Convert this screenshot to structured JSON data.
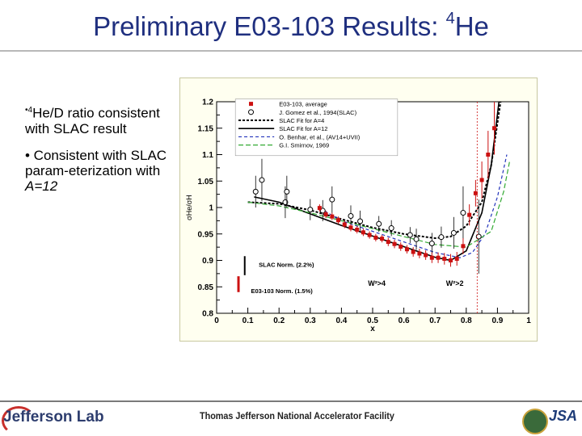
{
  "slide": {
    "title_main": "Preliminary E03-103 Results: ",
    "title_sup": "4",
    "title_tail": "He",
    "bullet1_prefix": "•",
    "bullet1_sup": "4",
    "bullet1_text": "He/D ratio consistent with SLAC result",
    "bullet2_text": "• Consistent with SLAC param-eterization with",
    "bullet2_italic": "A=12",
    "footer_text": "Thomas Jefferson National Accelerator Facility",
    "logo_left": "Jefferson Lab",
    "logo_right": "JSA"
  },
  "chart_data": {
    "type": "scatter",
    "xlabel": "x",
    "ylabel": "σHe/σH",
    "xlim": [
      0,
      1
    ],
    "ylim": [
      0.8,
      1.2
    ],
    "xticks": [
      "0",
      "0.1",
      "0.2",
      "0.3",
      "0.4",
      "0.5",
      "0.6",
      "0.7",
      "0.8",
      "0.9",
      "1"
    ],
    "yticks": [
      "0.8",
      "0.85",
      "0.9",
      "0.95",
      "1",
      "1.05",
      "1.1",
      "1.15",
      "1.2"
    ],
    "legend_position": "top",
    "legend": [
      "E03-103, average",
      "J. Gomez et al., 1994(SLAC)",
      "SLAC Fit for A=4",
      "SLAC Fit for A=12",
      "O. Benhar, et al., (AV14+UVII)",
      "G.I. Smirnov, 1969"
    ],
    "annotations": {
      "slac_norm": "SLAC Norm. (2.2%)",
      "e03_norm": "E03-103 Norm. (1.5%)",
      "w2_4": "W²>4",
      "w2_2": "W²>2"
    },
    "colors": {
      "e03": "#cc1111",
      "benhar": "#2233bb",
      "smirnov": "#33aa33",
      "frame_bg": "#fffff0"
    },
    "series": [
      {
        "name": "E03-103, average",
        "points": [
          [
            0.33,
            0.999,
            0.007
          ],
          [
            0.35,
            0.987,
            0.007
          ],
          [
            0.37,
            0.983,
            0.007
          ],
          [
            0.39,
            0.976,
            0.007
          ],
          [
            0.41,
            0.968,
            0.007
          ],
          [
            0.43,
            0.962,
            0.007
          ],
          [
            0.45,
            0.958,
            0.007
          ],
          [
            0.47,
            0.953,
            0.007
          ],
          [
            0.49,
            0.948,
            0.007
          ],
          [
            0.51,
            0.943,
            0.007
          ],
          [
            0.53,
            0.941,
            0.007
          ],
          [
            0.55,
            0.935,
            0.008
          ],
          [
            0.57,
            0.931,
            0.008
          ],
          [
            0.59,
            0.926,
            0.008
          ],
          [
            0.61,
            0.921,
            0.008
          ],
          [
            0.63,
            0.916,
            0.009
          ],
          [
            0.65,
            0.913,
            0.009
          ],
          [
            0.67,
            0.91,
            0.009
          ],
          [
            0.69,
            0.905,
            0.01
          ],
          [
            0.71,
            0.905,
            0.01
          ],
          [
            0.73,
            0.903,
            0.011
          ],
          [
            0.75,
            0.9,
            0.012
          ],
          [
            0.77,
            0.903,
            0.013
          ],
          [
            0.79,
            0.927,
            0.015
          ],
          [
            0.81,
            0.986,
            0.02
          ],
          [
            0.83,
            1.027,
            0.025
          ],
          [
            0.85,
            1.052,
            0.035
          ],
          [
            0.87,
            1.1,
            0.045
          ],
          [
            0.89,
            1.15,
            0.05
          ]
        ]
      },
      {
        "name": "J. Gomez et al., 1994(SLAC)",
        "points": [
          [
            0.125,
            1.03,
            0.03
          ],
          [
            0.145,
            1.052,
            0.04
          ],
          [
            0.22,
            1.01,
            0.03
          ],
          [
            0.225,
            1.03,
            0.03
          ],
          [
            0.3,
            0.996,
            0.02
          ],
          [
            0.34,
            0.994,
            0.02
          ],
          [
            0.37,
            1.015,
            0.025
          ],
          [
            0.43,
            0.984,
            0.02
          ],
          [
            0.46,
            0.974,
            0.02
          ],
          [
            0.52,
            0.969,
            0.015
          ],
          [
            0.56,
            0.961,
            0.015
          ],
          [
            0.62,
            0.948,
            0.015
          ],
          [
            0.64,
            0.94,
            0.02
          ],
          [
            0.69,
            0.932,
            0.02
          ],
          [
            0.72,
            0.944,
            0.02
          ],
          [
            0.76,
            0.952,
            0.03
          ],
          [
            0.79,
            0.99,
            0.05
          ],
          [
            0.84,
            0.945,
            0.07
          ]
        ]
      },
      {
        "name": "SLAC Fit for A=4",
        "curve": [
          [
            0.1,
            1.01
          ],
          [
            0.2,
            1.007
          ],
          [
            0.3,
            0.995
          ],
          [
            0.4,
            0.978
          ],
          [
            0.5,
            0.962
          ],
          [
            0.6,
            0.95
          ],
          [
            0.7,
            0.942
          ],
          [
            0.75,
            0.945
          ],
          [
            0.8,
            0.965
          ],
          [
            0.85,
            1.01
          ],
          [
            0.88,
            1.08
          ],
          [
            0.91,
            1.2
          ]
        ]
      },
      {
        "name": "SLAC Fit for A=12",
        "curve": [
          [
            0.12,
            1.02
          ],
          [
            0.2,
            1.01
          ],
          [
            0.3,
            0.988
          ],
          [
            0.4,
            0.966
          ],
          [
            0.5,
            0.946
          ],
          [
            0.6,
            0.926
          ],
          [
            0.7,
            0.906
          ],
          [
            0.75,
            0.9
          ],
          [
            0.8,
            0.918
          ],
          [
            0.85,
            0.99
          ],
          [
            0.88,
            1.08
          ],
          [
            0.905,
            1.2
          ]
        ]
      },
      {
        "name": "O. Benhar, et al., (AV14+UVII)",
        "curve": [
          [
            0.33,
            0.999
          ],
          [
            0.4,
            0.975
          ],
          [
            0.5,
            0.955
          ],
          [
            0.6,
            0.935
          ],
          [
            0.7,
            0.915
          ],
          [
            0.78,
            0.905
          ],
          [
            0.82,
            0.915
          ],
          [
            0.86,
            0.95
          ],
          [
            0.9,
            1.02
          ],
          [
            0.93,
            1.1
          ]
        ]
      },
      {
        "name": "G.I. Smirnov, 1969",
        "curve": [
          [
            0.1,
            1.01
          ],
          [
            0.2,
            1.003
          ],
          [
            0.3,
            0.99
          ],
          [
            0.4,
            0.975
          ],
          [
            0.5,
            0.96
          ],
          [
            0.6,
            0.945
          ],
          [
            0.7,
            0.93
          ],
          [
            0.8,
            0.925
          ],
          [
            0.88,
            0.955
          ],
          [
            0.92,
            1.03
          ],
          [
            0.94,
            1.09
          ]
        ]
      }
    ]
  }
}
